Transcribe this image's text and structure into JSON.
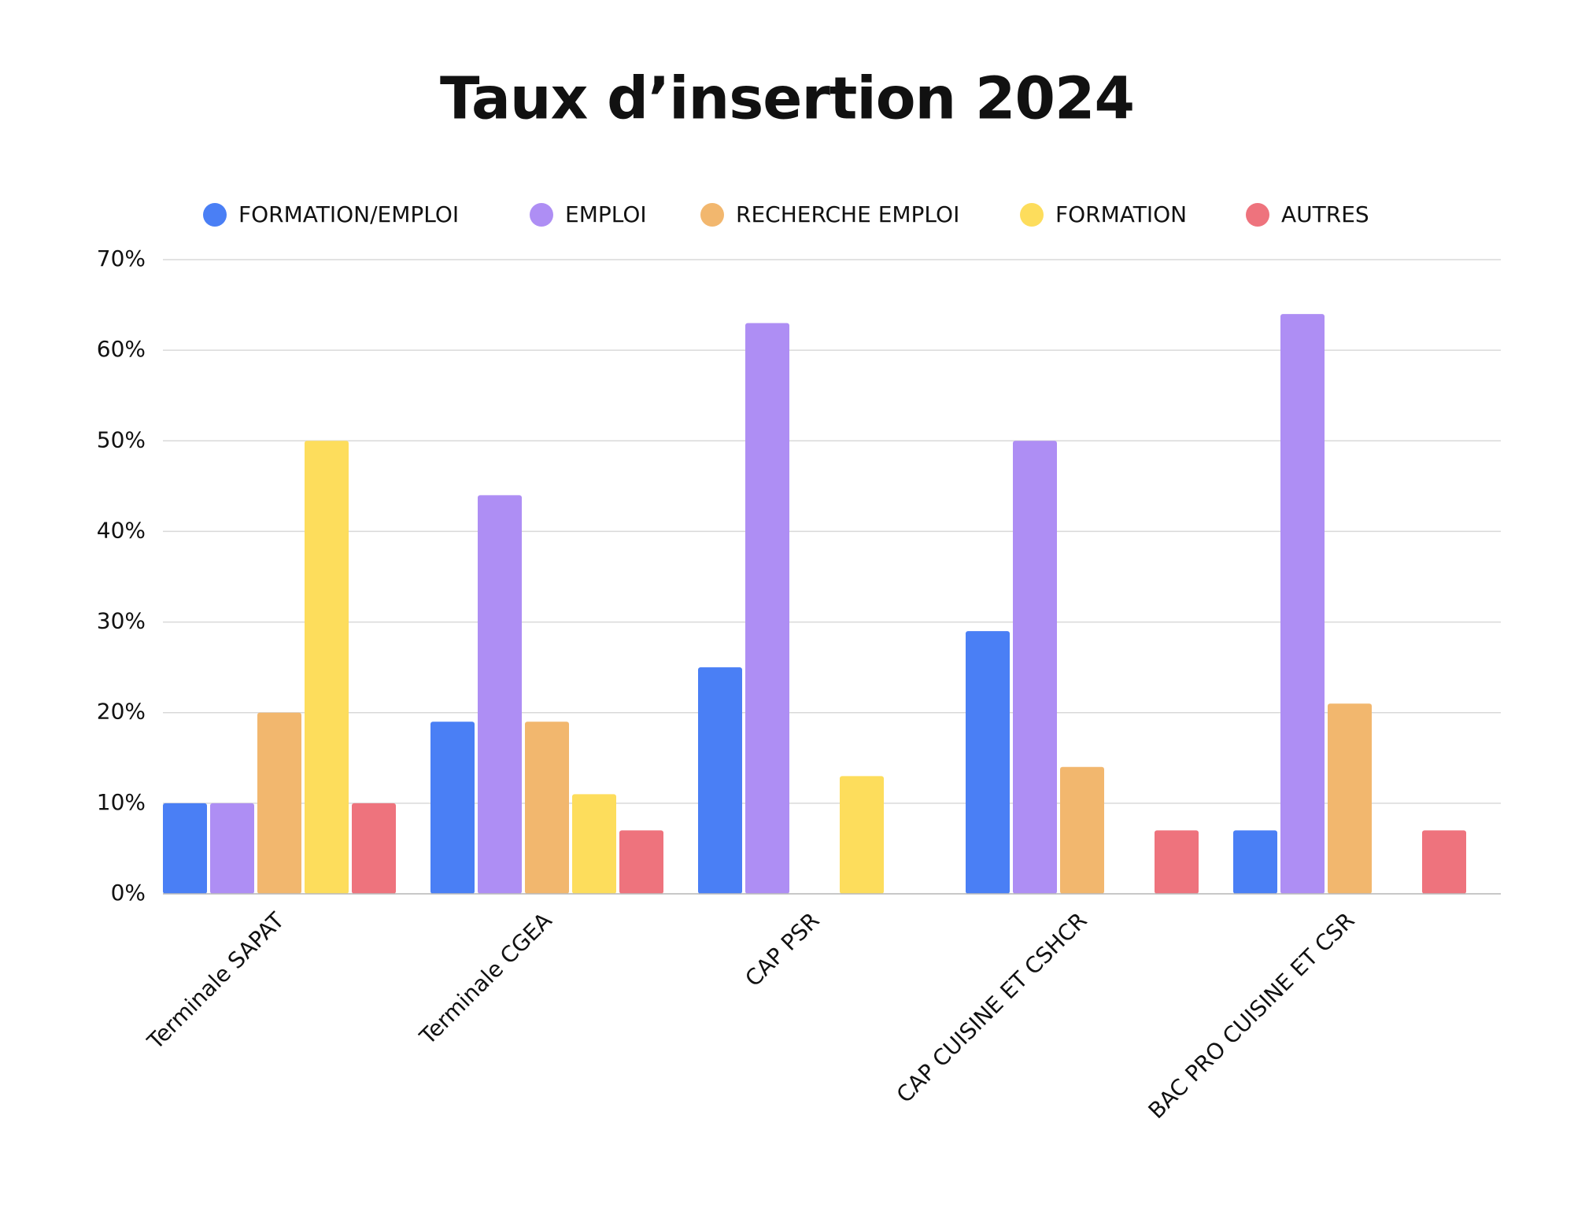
{
  "chart_data": {
    "type": "bar",
    "title": "Taux d’insertion 2024",
    "categories": [
      "Terminale SAPAT",
      "Terminale CGEA",
      "CAP PSR",
      "CAP CUISINE ET CSHCR",
      "BAC PRO CUISINE ET CSR"
    ],
    "series": [
      {
        "name": "FORMATION/EMPLOI",
        "color": "#4a7ff5",
        "values": [
          10,
          19,
          25,
          29,
          7
        ]
      },
      {
        "name": "EMPLOI",
        "color": "#ae8ef4",
        "values": [
          10,
          44,
          63,
          50,
          64
        ]
      },
      {
        "name": "RECHERCHE EMPLOI",
        "color": "#f2b76e",
        "values": [
          20,
          19,
          0,
          14,
          21
        ]
      },
      {
        "name": "FORMATION",
        "color": "#fddd5c",
        "values": [
          50,
          11,
          13,
          0,
          0
        ]
      },
      {
        "name": "AUTRES",
        "color": "#ee737d",
        "values": [
          10,
          7,
          0,
          7,
          7
        ]
      }
    ],
    "ylim": [
      0,
      70
    ],
    "yticks": [
      {
        "value": 0,
        "label": "0%"
      },
      {
        "value": 10,
        "label": "10%"
      },
      {
        "value": 20,
        "label": "20%"
      },
      {
        "value": 30,
        "label": "30%"
      },
      {
        "value": 40,
        "label": "40%"
      },
      {
        "value": 50,
        "label": "50%"
      },
      {
        "value": 60,
        "label": "60%"
      },
      {
        "value": 70,
        "label": "70%"
      }
    ],
    "grid": true
  }
}
